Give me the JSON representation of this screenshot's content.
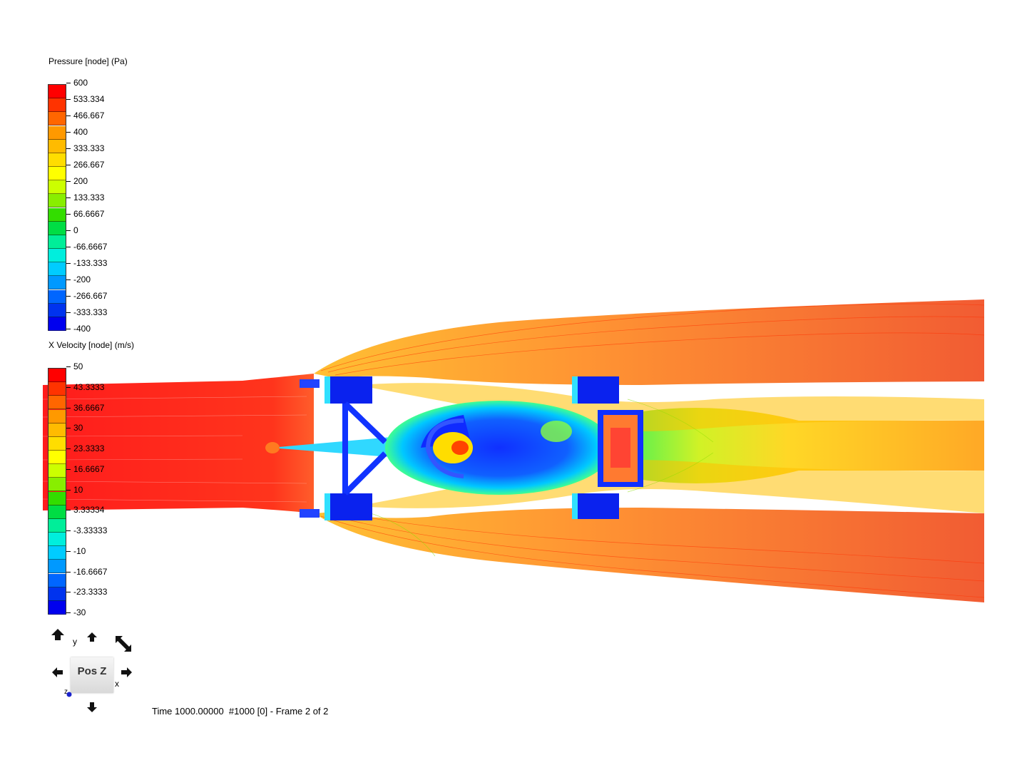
{
  "pressure_legend": {
    "title": "Pressure [node] (Pa)",
    "labels": [
      "600",
      "533.334",
      "466.667",
      "400",
      "333.333",
      "266.667",
      "200",
      "133.333",
      "66.6667",
      "0",
      "-66.6667",
      "-133.333",
      "-200",
      "-266.667",
      "-333.333",
      "-400"
    ]
  },
  "velocity_legend": {
    "title": "X Velocity [node] (m/s)",
    "labels": [
      "50",
      "43.3333",
      "36.6667",
      "30",
      "23.3333",
      "16.6667",
      "10",
      "3.33334",
      "-3.33333",
      "-10",
      "-16.6667",
      "-23.3333",
      "-30"
    ]
  },
  "colormap": [
    "#ff0000",
    "#ff3300",
    "#ff6600",
    "#ff9900",
    "#ffbb00",
    "#ffdd00",
    "#ffff00",
    "#ccff00",
    "#88ee00",
    "#33dd00",
    "#00dd44",
    "#00ee99",
    "#00eedd",
    "#00ccff",
    "#0099ff",
    "#0066ff",
    "#0033ee",
    "#0000ee"
  ],
  "view_triad": {
    "face_label": "Pos Z",
    "axis_y": "y",
    "axis_x": "x",
    "axis_z": "z"
  },
  "status_text": "Time 1000.00000  #1000 [0] - Frame 2 of 2"
}
